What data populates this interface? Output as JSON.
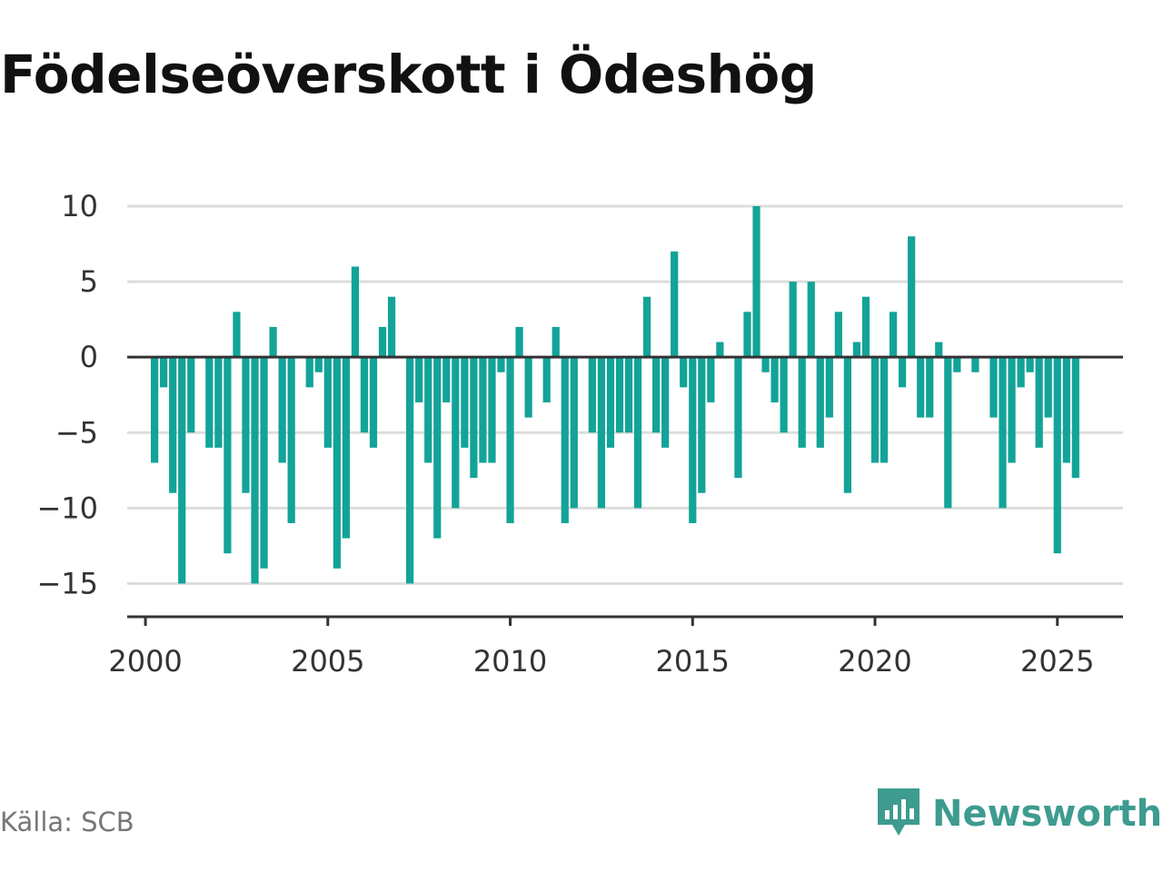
{
  "title": "Födelseöverskott i Ödeshög",
  "source": "Källa: SCB",
  "brand": {
    "name": "Newsworthy",
    "icon": "newsworthy-logo-icon",
    "color": "#3e9b8f"
  },
  "colors": {
    "bar": "#13a398",
    "grid": "#dddddd",
    "zero_line": "#333333",
    "axis": "#333333"
  },
  "chart_data": {
    "type": "bar",
    "title": "Födelseöverskott i Ödeshög",
    "xlabel": "",
    "ylabel": "",
    "frequency": "quarterly",
    "x_start": 2000.25,
    "x_step": 0.25,
    "xlim": [
      1999.5,
      2026.8
    ],
    "ylim": [
      -17.2,
      10
    ],
    "yticks": [
      10,
      5,
      0,
      -5,
      -10,
      -15
    ],
    "ytick_labels": [
      "10",
      "5",
      "0",
      "−5",
      "−10",
      "−15"
    ],
    "xticks": [
      2000,
      2005,
      2010,
      2015,
      2020,
      2025
    ],
    "xtick_labels": [
      "2000",
      "2005",
      "2010",
      "2015",
      "2020",
      "2025"
    ],
    "grid": true,
    "legend": "none",
    "values": [
      -7,
      -2,
      -9,
      -15,
      -5,
      0,
      -6,
      -6,
      -13,
      3,
      -9,
      -15,
      -14,
      2,
      -7,
      -11,
      0,
      -2,
      -1,
      -6,
      -14,
      -12,
      6,
      -5,
      -6,
      2,
      4,
      0,
      -15,
      -3,
      -7,
      -12,
      -3,
      -10,
      -6,
      -8,
      -7,
      -7,
      -1,
      -11,
      2,
      -4,
      0,
      -3,
      2,
      -11,
      -10,
      0,
      -5,
      -10,
      -6,
      -5,
      -5,
      -10,
      4,
      -5,
      -6,
      7,
      -2,
      -11,
      -9,
      -3,
      1,
      0,
      -8,
      3,
      10,
      -1,
      -3,
      -5,
      5,
      -6,
      5,
      -6,
      -4,
      3,
      -9,
      1,
      4,
      -7,
      -7,
      3,
      -2,
      8,
      -4,
      -4,
      1,
      -10,
      -1,
      0,
      -1,
      0,
      -4,
      -10,
      -7,
      -2,
      -1,
      -6,
      -4,
      -13,
      -7,
      -8
    ]
  }
}
